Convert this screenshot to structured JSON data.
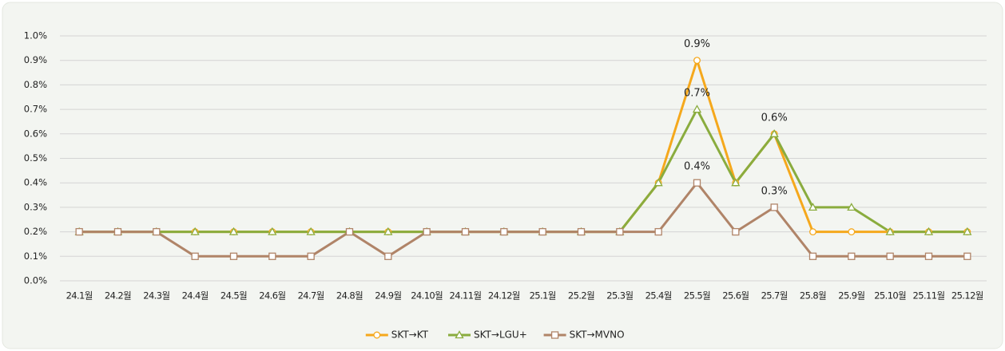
{
  "chart_data": {
    "type": "line",
    "categories": [
      "24.1월",
      "24.2월",
      "24.3월",
      "24.4월",
      "24.5월",
      "24.6월",
      "24.7월",
      "24.8월",
      "24.9월",
      "24.10월",
      "24.11월",
      "24.12월",
      "25.1월",
      "25.2월",
      "25.3월",
      "25.4월",
      "25.5월",
      "25.6월",
      "25.7월",
      "25.8월",
      "25.9월",
      "25.10월",
      "25.11월",
      "25.12월"
    ],
    "series": [
      {
        "name": "SKT→KT",
        "color": "#f5a81c",
        "marker": "circle",
        "values": [
          0.2,
          0.2,
          0.2,
          0.2,
          0.2,
          0.2,
          0.2,
          0.2,
          0.2,
          0.2,
          0.2,
          0.2,
          0.2,
          0.2,
          0.2,
          0.4,
          0.9,
          0.4,
          0.6,
          0.2,
          0.2,
          0.2,
          0.2,
          0.2
        ],
        "value_labels": [
          null,
          null,
          null,
          null,
          null,
          null,
          null,
          null,
          null,
          null,
          null,
          null,
          null,
          null,
          null,
          null,
          "0.9%",
          null,
          null,
          null,
          null,
          null,
          null,
          null
        ]
      },
      {
        "name": "SKT→LGU+",
        "color": "#8aac3e",
        "marker": "triangle",
        "values": [
          0.2,
          0.2,
          0.2,
          0.2,
          0.2,
          0.2,
          0.2,
          0.2,
          0.2,
          0.2,
          0.2,
          0.2,
          0.2,
          0.2,
          0.2,
          0.4,
          0.7,
          0.4,
          0.6,
          0.3,
          0.3,
          0.2,
          0.2,
          0.2
        ],
        "value_labels": [
          null,
          null,
          null,
          null,
          null,
          null,
          null,
          null,
          null,
          null,
          null,
          null,
          null,
          null,
          null,
          null,
          "0.7%",
          null,
          "0.6%",
          null,
          null,
          null,
          null,
          null
        ]
      },
      {
        "name": "SKT→MVNO",
        "color": "#b08468",
        "marker": "square",
        "values": [
          0.2,
          0.2,
          0.2,
          0.1,
          0.1,
          0.1,
          0.1,
          0.2,
          0.1,
          0.2,
          0.2,
          0.2,
          0.2,
          0.2,
          0.2,
          0.2,
          0.4,
          0.2,
          0.3,
          0.1,
          0.1,
          0.1,
          0.1,
          0.1
        ],
        "value_labels": [
          null,
          null,
          null,
          null,
          null,
          null,
          null,
          null,
          null,
          null,
          null,
          null,
          null,
          null,
          null,
          null,
          "0.4%",
          null,
          "0.3%",
          null,
          null,
          null,
          null,
          null
        ]
      }
    ],
    "ylim": [
      0,
      1
    ],
    "yticks": [
      {
        "value": 0,
        "label": "0.0%"
      },
      {
        "value": 0.1,
        "label": "0.1%"
      },
      {
        "value": 0.2,
        "label": "0.2%"
      },
      {
        "value": 0.3,
        "label": "0.3%"
      },
      {
        "value": 0.4,
        "label": "0.4%"
      },
      {
        "value": 0.5,
        "label": "0.5%"
      },
      {
        "value": 0.6,
        "label": "0.6%"
      },
      {
        "value": 0.7,
        "label": "0.7%"
      },
      {
        "value": 0.8,
        "label": "0.8%"
      },
      {
        "value": 0.9,
        "label": "0.9%"
      },
      {
        "value": 1,
        "label": "1.0%"
      }
    ],
    "grid": true,
    "legend": "bottom"
  }
}
